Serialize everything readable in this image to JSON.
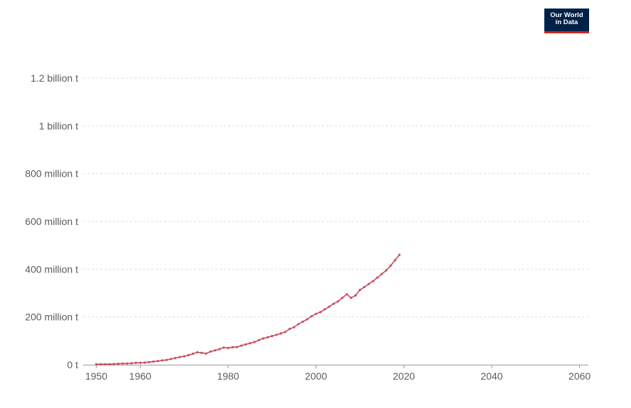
{
  "logo": {
    "line1": "Our World",
    "line2": "in Data"
  },
  "chart_data": {
    "type": "line",
    "title": "",
    "xlabel": "",
    "ylabel": "",
    "xlim": [
      1947,
      2062
    ],
    "ylim": [
      0,
      1200000000
    ],
    "grid": true,
    "colors": {
      "series": "#c84b62"
    },
    "y_ticks": [
      {
        "value": 0,
        "label": "0 t"
      },
      {
        "value": 200000000,
        "label": "200 million t"
      },
      {
        "value": 400000000,
        "label": "400 million t"
      },
      {
        "value": 600000000,
        "label": "600 million t"
      },
      {
        "value": 800000000,
        "label": "800 million t"
      },
      {
        "value": 1000000000,
        "label": "1 billion t"
      },
      {
        "value": 1200000000,
        "label": "1.2 billion t"
      }
    ],
    "x_ticks": [
      {
        "value": 1950,
        "label": "1950"
      },
      {
        "value": 1960,
        "label": "1960"
      },
      {
        "value": 1980,
        "label": "1980"
      },
      {
        "value": 2000,
        "label": "2000"
      },
      {
        "value": 2020,
        "label": "2020"
      },
      {
        "value": 2040,
        "label": "2040"
      },
      {
        "value": 2060,
        "label": "2060"
      }
    ],
    "series": [
      {
        "x": [
          1950,
          1951,
          1952,
          1953,
          1954,
          1955,
          1956,
          1957,
          1958,
          1959,
          1960,
          1961,
          1962,
          1963,
          1964,
          1965,
          1966,
          1967,
          1968,
          1969,
          1970,
          1971,
          1972,
          1973,
          1974,
          1975,
          1976,
          1977,
          1978,
          1979,
          1980,
          1981,
          1982,
          1983,
          1984,
          1985,
          1986,
          1987,
          1988,
          1989,
          1990,
          1991,
          1992,
          1993,
          1994,
          1995,
          1996,
          1997,
          1998,
          1999,
          2000,
          2001,
          2002,
          2003,
          2004,
          2005,
          2006,
          2007,
          2008,
          2009,
          2010,
          2011,
          2012,
          2013,
          2014,
          2015,
          2016,
          2017,
          2018,
          2019
        ],
        "values": [
          2000000,
          2000000,
          2000000,
          2000000,
          3000000,
          4000000,
          5000000,
          5000000,
          6000000,
          8000000,
          8000000,
          9000000,
          11000000,
          13000000,
          15000000,
          18000000,
          20000000,
          24000000,
          28000000,
          32000000,
          35000000,
          40000000,
          46000000,
          52000000,
          50000000,
          47000000,
          55000000,
          60000000,
          65000000,
          72000000,
          70000000,
          73000000,
          74000000,
          80000000,
          85000000,
          90000000,
          95000000,
          103000000,
          110000000,
          115000000,
          120000000,
          125000000,
          131000000,
          137000000,
          150000000,
          157000000,
          170000000,
          180000000,
          190000000,
          203000000,
          213000000,
          220000000,
          232000000,
          243000000,
          255000000,
          265000000,
          280000000,
          295000000,
          280000000,
          290000000,
          313000000,
          325000000,
          338000000,
          350000000,
          365000000,
          380000000,
          395000000,
          415000000,
          438000000,
          460000000
        ]
      }
    ]
  }
}
